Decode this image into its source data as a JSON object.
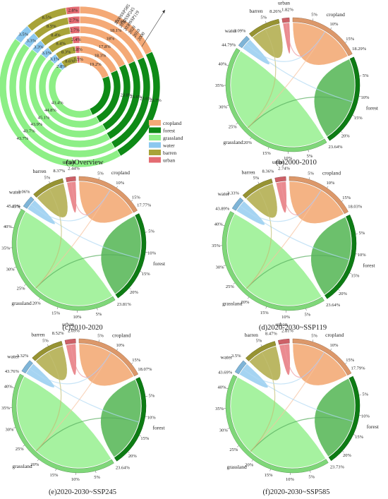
{
  "colors": {
    "cropland": "#f4a976",
    "forest": "#0e8a16",
    "grassland": "#8def86",
    "water": "#8cc8ef",
    "barren": "#a8a338",
    "urban": "#e46b72"
  },
  "classes": [
    "cropland",
    "forest",
    "grassland",
    "water",
    "barren",
    "urban"
  ],
  "overview": {
    "caption": "(a)Overview",
    "ring_labels": [
      "2000",
      "2010",
      "2020",
      "2030SSP119",
      "2030SSP245",
      "2030SSP585"
    ],
    "legend": [
      "cropland",
      "forest",
      "grassland",
      "water",
      "barren",
      "urban"
    ],
    "forest_labels": [
      "23.8%",
      "23.6%",
      "23.6%",
      "23.7%"
    ]
  },
  "chart_data": [
    {
      "type": "pie",
      "title": "(a)Overview",
      "categories": [
        "cropland",
        "forest",
        "grassland",
        "water",
        "barren",
        "urban"
      ],
      "series": [
        {
          "name": "2000",
          "values": [
            19.2,
            23.8,
            43.4,
            2.8,
            8.6,
            1.5
          ]
        },
        {
          "name": "2010",
          "values": [
            18.3,
            23.6,
            44.8,
            3.1,
            8.3,
            1.8
          ]
        },
        {
          "name": "2020",
          "values": [
            17.8,
            23.8,
            45.1,
            3.1,
            8.4,
            2.4
          ]
        },
        {
          "name": "2030SSP119",
          "values": [
            18.0,
            23.6,
            43.9,
            3.3,
            8.4,
            2.7
          ]
        },
        {
          "name": "2030SSP245",
          "values": [
            18.1,
            23.6,
            43.7,
            3.3,
            8.5,
            2.7
          ]
        },
        {
          "name": "2030SSP585",
          "values": [
            17.8,
            23.7,
            43.7,
            3.5,
            8.5,
            2.8
          ]
        }
      ]
    },
    {
      "type": "chord",
      "title": "(b)2000-2010",
      "categories": [
        "cropland",
        "forest",
        "grassland",
        "water",
        "barren",
        "urban"
      ],
      "values": [
        18.29,
        23.64,
        44.79,
        3.09,
        8.26,
        1.82
      ],
      "value_labels": [
        "18.29%",
        "23.64%",
        "44.79%",
        "3.09%",
        "8.26%",
        "1.82%"
      ]
    },
    {
      "type": "chord",
      "title": "(c)2010-2020",
      "categories": [
        "cropland",
        "forest",
        "grassland",
        "water",
        "barren",
        "urban"
      ],
      "values": [
        17.77,
        23.81,
        45.11,
        3.06,
        8.37,
        2.44
      ],
      "value_labels": [
        "17.77%",
        "23.81%",
        "45.11%",
        "3.06%",
        "8.37%",
        "2.44%"
      ]
    },
    {
      "type": "chord",
      "title": "(d)2020-2030~SSP119",
      "categories": [
        "cropland",
        "forest",
        "grassland",
        "water",
        "barren",
        "urban"
      ],
      "values": [
        18.03,
        23.64,
        43.89,
        3.33,
        8.36,
        2.74
      ],
      "value_labels": [
        "18.03%",
        "23.64%",
        "43.89%",
        "3.33%",
        "8.36%",
        "2.74%"
      ]
    },
    {
      "type": "chord",
      "title": "(e)2020-2030~SSP245",
      "categories": [
        "cropland",
        "forest",
        "grassland",
        "water",
        "barren",
        "urban"
      ],
      "values": [
        18.07,
        23.64,
        43.76,
        3.32,
        8.52,
        2.69
      ],
      "value_labels": [
        "18.07%",
        "23.64%",
        "43.76%",
        "3.32%",
        "8.52%",
        "2.69%"
      ]
    },
    {
      "type": "chord",
      "title": "(f)2020-2030~SSP585",
      "categories": [
        "cropland",
        "forest",
        "grassland",
        "water",
        "barren",
        "urban"
      ],
      "values": [
        17.79,
        23.73,
        43.69,
        3.5,
        8.47,
        2.81
      ],
      "value_labels": [
        "17.79%",
        "23.73%",
        "43.69%",
        "3.5%",
        "8.47%",
        "2.81%"
      ]
    }
  ],
  "tick_labels": [
    "5%",
    "10%",
    "15%",
    "20%",
    "25%",
    "30%",
    "35%",
    "40%"
  ]
}
